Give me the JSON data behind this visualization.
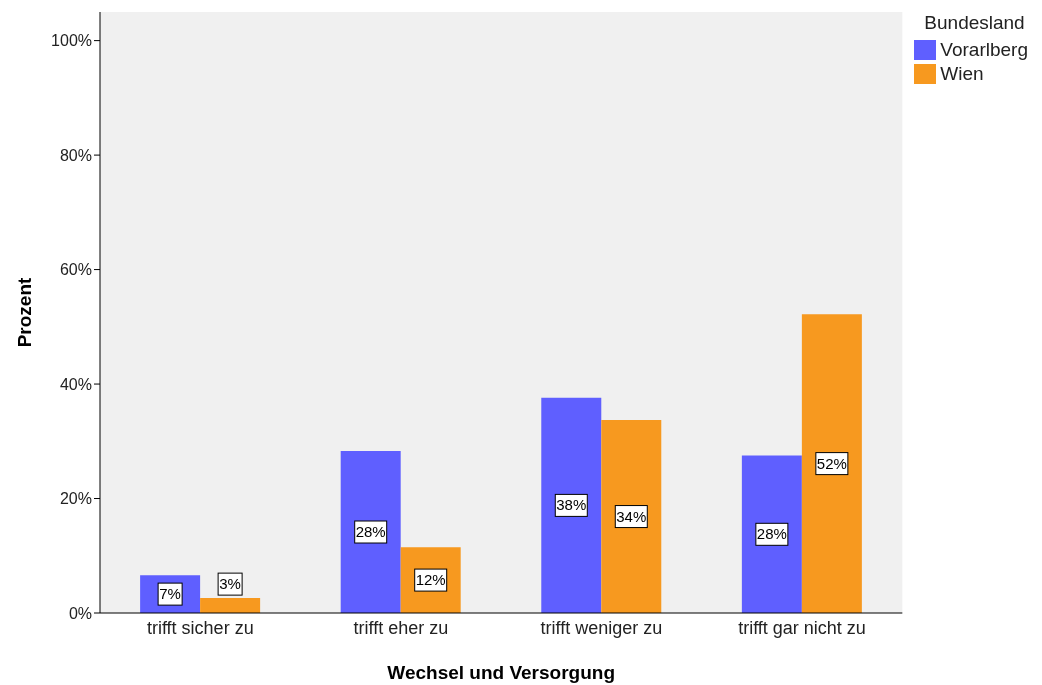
{
  "chart_data": {
    "type": "bar",
    "xlabel": "Wechsel und Versorgung",
    "ylabel": "Prozent",
    "legend_title": "Bundesland",
    "categories": [
      "trifft sicher zu",
      "trifft eher zu",
      "trifft weniger zu",
      "trifft gar nicht zu"
    ],
    "series": [
      {
        "name": "Vorarlberg",
        "color": "#5f5fff",
        "values": [
          6.6,
          28.3,
          37.6,
          27.5
        ],
        "value_labels": [
          "7%",
          "28%",
          "38%",
          "28%"
        ]
      },
      {
        "name": "Wien",
        "color": "#f7991f",
        "values": [
          2.6,
          11.5,
          33.7,
          52.2
        ],
        "value_labels": [
          "3%",
          "12%",
          "34%",
          "52%"
        ]
      }
    ],
    "ylim": [
      0,
      105
    ],
    "yticks": [
      {
        "value": 0,
        "label": "0%"
      },
      {
        "value": 20,
        "label": "20%"
      },
      {
        "value": 40,
        "label": "40%"
      },
      {
        "value": 60,
        "label": "60%"
      },
      {
        "value": 80,
        "label": "80%"
      },
      {
        "value": 100,
        "label": "100%"
      }
    ],
    "legend": "top right",
    "grid": false
  }
}
